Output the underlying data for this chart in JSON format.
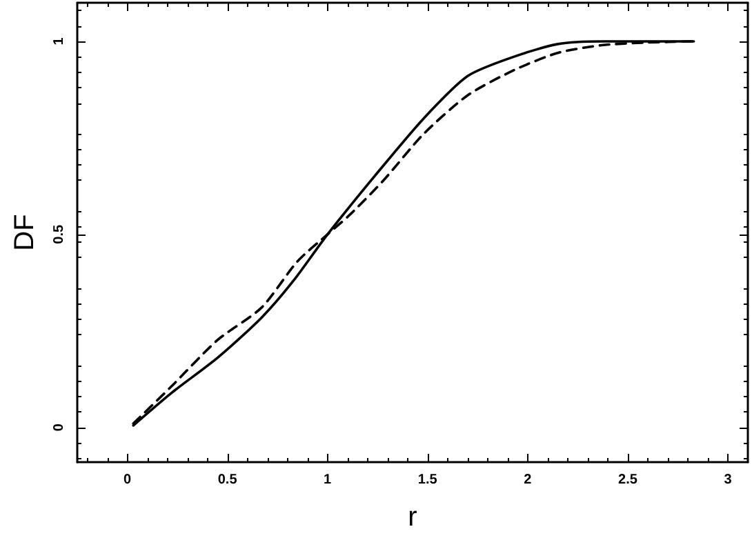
{
  "chart_data": {
    "type": "line",
    "xlabel": "r",
    "ylabel": "DF",
    "xlim": [
      -0.25,
      3.1
    ],
    "ylim": [
      -0.09,
      1.1
    ],
    "xticks": [
      0,
      0.5,
      1,
      1.5,
      2,
      2.5,
      3
    ],
    "yticks": [
      0,
      0.5,
      1
    ],
    "grid": false,
    "marker": "none",
    "series": [
      {
        "color": "#000000",
        "line_style": "solid",
        "x": [
          0.03,
          0.22,
          0.45,
          0.67,
          0.83,
          1.0,
          1.25,
          1.48,
          1.7,
          1.93,
          2.15,
          2.37,
          2.83
        ],
        "values": [
          0.005,
          0.089,
          0.18,
          0.284,
          0.38,
          0.5,
          0.66,
          0.8,
          0.91,
          0.96,
          0.993,
          1.0,
          1.0
        ]
      },
      {
        "color": "#000000",
        "line_style": "dashed",
        "x": [
          0.03,
          0.22,
          0.45,
          0.67,
          0.85,
          1.0,
          1.11,
          1.28,
          1.48,
          1.7,
          1.93,
          2.15,
          2.37,
          2.6,
          2.83
        ],
        "values": [
          0.01,
          0.106,
          0.226,
          0.31,
          0.43,
          0.5,
          0.55,
          0.64,
          0.76,
          0.86,
          0.925,
          0.97,
          0.99,
          0.997,
          1.0
        ]
      }
    ]
  }
}
